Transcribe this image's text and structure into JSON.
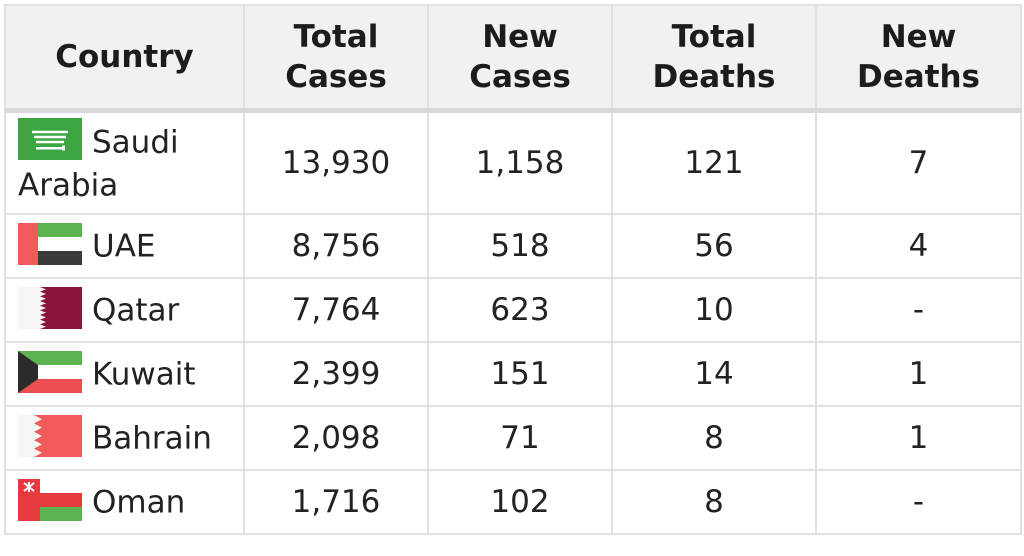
{
  "table": {
    "headers": [
      {
        "line1": "Country",
        "line2": ""
      },
      {
        "line1": "Total",
        "line2": "Cases"
      },
      {
        "line1": "New",
        "line2": "Cases"
      },
      {
        "line1": "Total",
        "line2": "Deaths"
      },
      {
        "line1": "New",
        "line2": "Deaths"
      }
    ],
    "rows": [
      {
        "country": "Saudi Arabia",
        "flag_icon": "saudi-arabia-flag-icon",
        "total_cases": "13,930",
        "new_cases": "1,158",
        "total_deaths": "121",
        "new_deaths": "7"
      },
      {
        "country": "UAE",
        "flag_icon": "uae-flag-icon",
        "total_cases": "8,756",
        "new_cases": "518",
        "total_deaths": "56",
        "new_deaths": "4"
      },
      {
        "country": "Qatar",
        "flag_icon": "qatar-flag-icon",
        "total_cases": "7,764",
        "new_cases": "623",
        "total_deaths": "10",
        "new_deaths": "-"
      },
      {
        "country": "Kuwait",
        "flag_icon": "kuwait-flag-icon",
        "total_cases": "2,399",
        "new_cases": "151",
        "total_deaths": "14",
        "new_deaths": "1"
      },
      {
        "country": "Bahrain",
        "flag_icon": "bahrain-flag-icon",
        "total_cases": "2,098",
        "new_cases": "71",
        "total_deaths": "8",
        "new_deaths": "1"
      },
      {
        "country": "Oman",
        "flag_icon": "oman-flag-icon",
        "total_cases": "1,716",
        "new_cases": "102",
        "total_deaths": "8",
        "new_deaths": "-"
      }
    ]
  },
  "colors": {
    "header_bg": "#f1f1f1",
    "border": "#e1e1e1",
    "saudi_green": "#3ea543",
    "uae_red": "#f05a5b",
    "uae_green": "#5bb450",
    "qatar_maroon": "#8a1538",
    "kuwait_green": "#5bb450",
    "kuwait_red": "#ec4d50",
    "bahrain_red": "#f05a5b",
    "oman_red": "#e63b3e",
    "oman_green": "#5bb450"
  }
}
